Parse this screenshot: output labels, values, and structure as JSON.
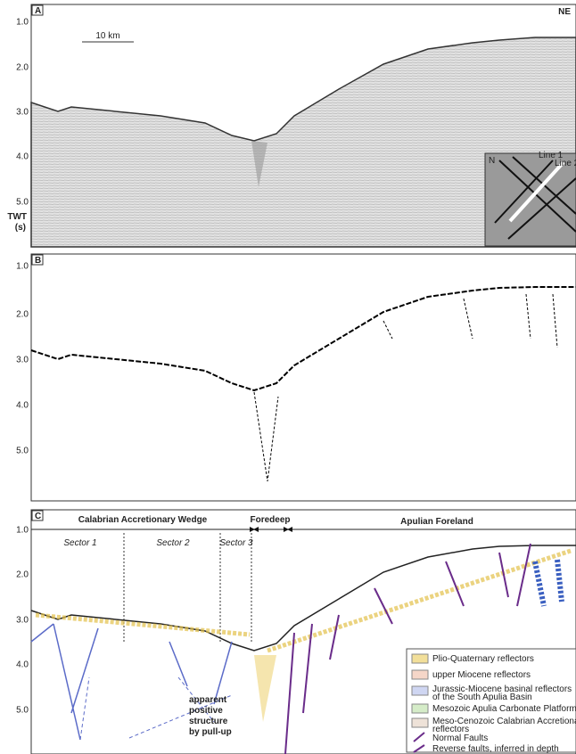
{
  "panels": [
    {
      "label": "A",
      "corner": "NE",
      "scale": "10 km",
      "ticks": [
        "1.0",
        "2.0",
        "3.0",
        "4.0",
        "5.0"
      ],
      "axis_title": "TWT",
      "axis_unit": "(s)",
      "inset": {
        "north": "N",
        "lines": [
          "Line 1",
          "Line 2"
        ]
      }
    },
    {
      "label": "B",
      "ticks": [
        "1.0",
        "2.0",
        "3.0",
        "4.0",
        "5.0"
      ]
    },
    {
      "label": "C",
      "ticks": [
        "1.0",
        "2.0",
        "3.0",
        "4.0",
        "5.0"
      ],
      "domains": [
        "Calabrian Accretionary Wedge",
        "Foredeep",
        "Apulian Foreland"
      ],
      "sectors": [
        "Sector 1",
        "Sector 2",
        "Sector 3"
      ],
      "annotation": [
        "apparent",
        "positive",
        "structure",
        "by pull-up"
      ],
      "legend": [
        "Plio-Quaternary reflectors",
        "upper Miocene reflectors",
        "Jurassic-Miocene basinal reflectors",
        "of the South Apulia Basin",
        "Mesozoic Apulia Carbonate Platform reflectors",
        "Meso-Cenozoic Calabrian Accretionary Wedge",
        "reflectors",
        "Normal Faults",
        "Reverse faults, inferred in depth"
      ]
    }
  ]
}
